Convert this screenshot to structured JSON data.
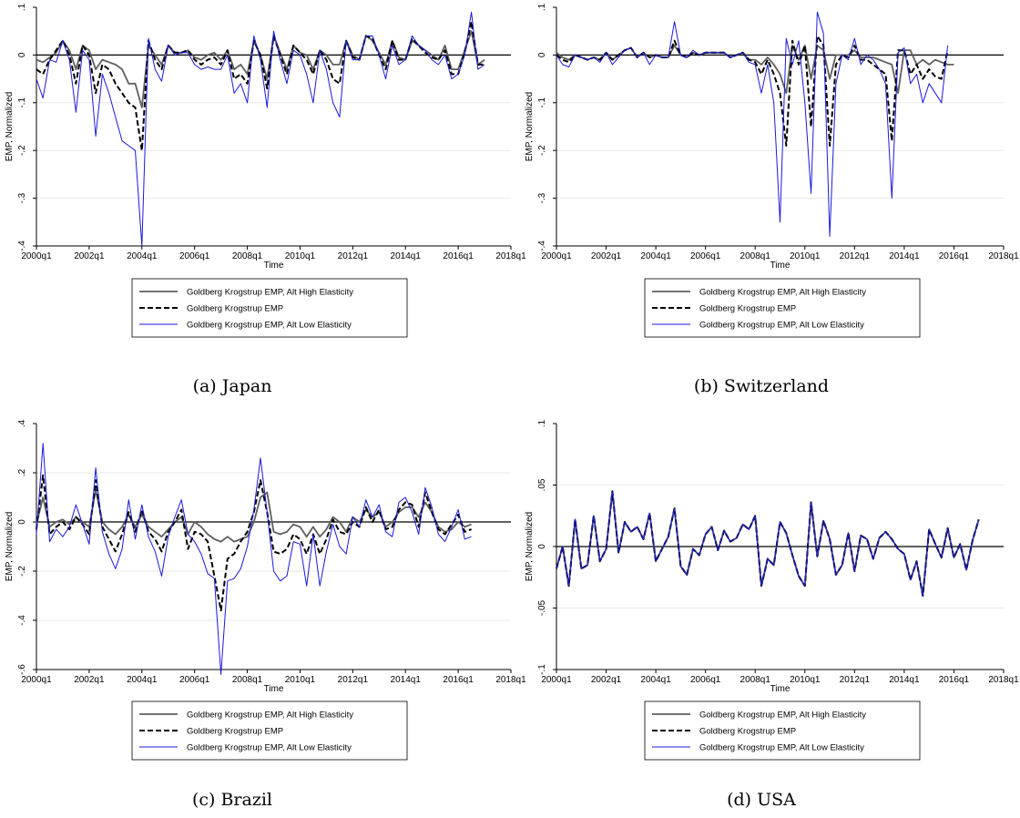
{
  "figure": {
    "legend_labels": [
      "Goldberg Krogstrup EMP, Alt High Elasticity",
      "Goldberg Krogstrup EMP",
      "Goldberg Krogstrup EMP, Alt Low Elasticity"
    ],
    "colors": {
      "high": "#5f5f5f",
      "base": "#000000",
      "low": "#1a1adc"
    }
  },
  "chart_data": [
    {
      "type": "line",
      "caption": "(a) Japan",
      "xlabel": "Time",
      "ylabel": "EMP, Normalized",
      "xlim": [
        2000.0,
        2018.0
      ],
      "x_ticks": [
        "2000q1",
        "2002q1",
        "2004q1",
        "2006q1",
        "2008q1",
        "2010q1",
        "2012q1",
        "2014q1",
        "2016q1",
        "2018q1"
      ],
      "ylim": [
        -0.4,
        0.1
      ],
      "y_ticks": [
        ".1",
        "0",
        "-.1",
        "-.2",
        "-.3",
        "-.4"
      ],
      "y_tick_values": [
        0.1,
        0,
        -0.1,
        -0.2,
        -0.3,
        -0.4
      ],
      "legend": "bottom",
      "x_start": "2000q1",
      "series": [
        {
          "name": "Goldberg Krogstrup EMP, Alt High Elasticity",
          "values": [
            -0.01,
            -0.015,
            -0.005,
            0.005,
            0.03,
            0.01,
            -0.03,
            0.02,
            0.01,
            -0.03,
            -0.01,
            -0.015,
            -0.02,
            -0.03,
            -0.06,
            -0.06,
            -0.11,
            0.02,
            0.0,
            -0.02,
            0.02,
            0.005,
            0.005,
            0.01,
            -0.005,
            -0.01,
            0.0,
            0.005,
            -0.01,
            0.01,
            -0.03,
            -0.02,
            -0.04,
            0.03,
            0.0,
            -0.05,
            0.04,
            0.005,
            -0.03,
            0.02,
            0.005,
            0.0,
            -0.03,
            0.01,
            0.0,
            -0.02,
            -0.02,
            0.03,
            0.0,
            -0.01,
            0.04,
            0.03,
            0.005,
            -0.02,
            0.03,
            -0.005,
            -0.01,
            0.03,
            0.02,
            0.01,
            0.0,
            -0.01,
            0.02,
            -0.03,
            -0.03,
            0.01,
            0.05,
            -0.02,
            -0.01
          ]
        },
        {
          "name": "Goldberg Krogstrup EMP",
          "values": [
            -0.03,
            -0.04,
            -0.01,
            0.01,
            0.03,
            0.0,
            -0.06,
            0.02,
            0.0,
            -0.08,
            -0.02,
            -0.03,
            -0.06,
            -0.08,
            -0.1,
            -0.11,
            -0.2,
            0.03,
            -0.01,
            -0.03,
            0.02,
            0.005,
            0.005,
            0.01,
            -0.01,
            -0.02,
            -0.01,
            -0.005,
            -0.02,
            0.01,
            -0.05,
            -0.04,
            -0.06,
            0.03,
            0.0,
            -0.07,
            0.04,
            0.0,
            -0.04,
            0.02,
            0.005,
            -0.01,
            -0.04,
            0.01,
            -0.01,
            -0.05,
            -0.06,
            0.03,
            -0.005,
            -0.01,
            0.04,
            0.035,
            0.0,
            -0.03,
            0.03,
            -0.01,
            -0.01,
            0.035,
            0.02,
            0.005,
            -0.005,
            -0.01,
            0.01,
            -0.04,
            -0.04,
            0.005,
            0.07,
            -0.02,
            -0.02
          ]
        },
        {
          "name": "Goldberg Krogstrup EMP, Alt Low Elasticity",
          "values": [
            -0.05,
            -0.09,
            -0.01,
            -0.015,
            0.03,
            -0.01,
            -0.12,
            0.01,
            -0.01,
            -0.17,
            -0.04,
            -0.08,
            -0.13,
            -0.18,
            -0.19,
            -0.2,
            -0.4,
            0.035,
            -0.03,
            -0.055,
            0.02,
            0.0,
            0.005,
            0.005,
            -0.02,
            -0.03,
            -0.025,
            -0.03,
            -0.03,
            0.0,
            -0.08,
            -0.06,
            -0.1,
            0.04,
            -0.01,
            -0.11,
            0.05,
            -0.01,
            -0.06,
            0.01,
            0.0,
            -0.04,
            -0.1,
            0.01,
            -0.03,
            -0.1,
            -0.13,
            0.03,
            -0.01,
            -0.01,
            0.04,
            0.04,
            0.0,
            -0.05,
            0.02,
            -0.02,
            -0.01,
            0.04,
            0.02,
            0.01,
            -0.01,
            -0.02,
            0.0,
            -0.05,
            -0.04,
            0.0,
            0.09,
            -0.03,
            -0.02
          ]
        }
      ]
    },
    {
      "type": "line",
      "caption": "(b) Switzerland",
      "xlabel": "Time",
      "ylabel": "EMP, Normalized",
      "xlim": [
        2000.0,
        2018.0
      ],
      "x_ticks": [
        "2000q1",
        "2002q1",
        "2004q1",
        "2006q1",
        "2008q1",
        "2010q1",
        "2012q1",
        "2014q1",
        "2016q1",
        "2018q1"
      ],
      "ylim": [
        -0.4,
        0.1
      ],
      "y_ticks": [
        ".1",
        "0",
        "-.1",
        "-.2",
        "-.3",
        "-.4"
      ],
      "y_tick_values": [
        0.1,
        0,
        -0.1,
        -0.2,
        -0.3,
        -0.4
      ],
      "legend": "bottom",
      "x_start": "2000q1",
      "series": [
        {
          "name": "Goldberg Krogstrup EMP, Alt High Elasticity",
          "values": [
            0.005,
            -0.005,
            -0.01,
            0.0,
            -0.005,
            -0.01,
            -0.005,
            -0.01,
            0.005,
            -0.01,
            0.0,
            0.01,
            0.015,
            -0.005,
            0.005,
            -0.005,
            0.0,
            -0.005,
            -0.005,
            0.02,
            0.0,
            -0.005,
            0.005,
            0.0,
            0.005,
            0.005,
            0.005,
            0.005,
            -0.005,
            0.0,
            0.005,
            -0.01,
            -0.01,
            -0.02,
            -0.005,
            -0.02,
            -0.04,
            -0.08,
            0.02,
            -0.01,
            0.02,
            -0.05,
            0.02,
            0.01,
            -0.05,
            0.0,
            0.0,
            0.0,
            0.01,
            -0.005,
            -0.005,
            -0.005,
            -0.01,
            -0.015,
            -0.02,
            -0.08,
            0.01,
            0.01,
            -0.02,
            -0.01,
            -0.02,
            -0.01,
            -0.015,
            -0.02,
            -0.02
          ]
        },
        {
          "name": "Goldberg Krogstrup EMP",
          "values": [
            0.0,
            -0.01,
            -0.015,
            0.0,
            -0.005,
            -0.01,
            -0.005,
            -0.01,
            0.005,
            -0.01,
            0.0,
            0.01,
            0.015,
            -0.005,
            0.005,
            -0.005,
            0.0,
            -0.005,
            -0.005,
            0.03,
            0.0,
            -0.005,
            0.005,
            0.0,
            0.005,
            0.005,
            0.005,
            0.005,
            -0.005,
            0.0,
            0.005,
            -0.01,
            -0.015,
            -0.04,
            -0.01,
            -0.04,
            -0.08,
            -0.19,
            0.03,
            -0.02,
            0.02,
            -0.15,
            0.04,
            0.02,
            -0.19,
            -0.02,
            0.0,
            -0.005,
            0.02,
            -0.01,
            -0.01,
            -0.02,
            -0.03,
            -0.04,
            -0.18,
            0.01,
            0.01,
            -0.04,
            -0.02,
            -0.05,
            -0.03,
            -0.045,
            -0.05,
            0.01
          ]
        },
        {
          "name": "Goldberg Krogstrup EMP, Alt Low Elasticity",
          "values": [
            0.0,
            -0.02,
            -0.025,
            0.0,
            -0.005,
            -0.01,
            -0.005,
            -0.015,
            0.005,
            -0.02,
            -0.005,
            0.01,
            0.015,
            -0.005,
            0.005,
            -0.02,
            0.0,
            -0.005,
            -0.005,
            0.07,
            0.0,
            -0.005,
            0.01,
            0.0,
            0.005,
            0.005,
            0.005,
            0.005,
            -0.005,
            0.0,
            0.005,
            -0.015,
            -0.02,
            -0.08,
            -0.02,
            -0.1,
            -0.35,
            0.035,
            -0.02,
            0.03,
            -0.1,
            -0.29,
            0.09,
            0.045,
            -0.38,
            -0.06,
            0.0,
            -0.01,
            0.035,
            -0.02,
            0.0,
            -0.01,
            -0.03,
            -0.06,
            -0.3,
            0.005,
            0.015,
            -0.06,
            -0.04,
            -0.1,
            -0.06,
            -0.08,
            -0.1,
            0.02
          ]
        }
      ]
    },
    {
      "type": "line",
      "caption": "(c) Brazil",
      "xlabel": "Time",
      "ylabel": "EMP, Normalized",
      "xlim": [
        2000.0,
        2018.0
      ],
      "x_ticks": [
        "2000q1",
        "2002q1",
        "2004q1",
        "2006q1",
        "2008q1",
        "2010q1",
        "2012q1",
        "2014q1",
        "2016q1",
        "2018q1"
      ],
      "ylim": [
        -0.6,
        0.4
      ],
      "y_ticks": [
        ".4",
        ".2",
        "0",
        "-.2",
        "-.4",
        "-.6"
      ],
      "y_tick_values": [
        0.4,
        0.2,
        0,
        -0.2,
        -0.4,
        -0.6
      ],
      "legend": "bottom",
      "x_start": "2000q1",
      "series": [
        {
          "name": "Goldberg Krogstrup EMP, Alt High Elasticity",
          "values": [
            -0.01,
            0.1,
            -0.02,
            0.0,
            0.01,
            -0.01,
            0.02,
            0.0,
            -0.02,
            0.13,
            0.0,
            -0.03,
            -0.05,
            -0.02,
            0.03,
            -0.02,
            0.03,
            -0.02,
            -0.04,
            -0.06,
            -0.03,
            0.0,
            0.02,
            -0.05,
            0.0,
            -0.02,
            -0.05,
            -0.07,
            -0.08,
            -0.06,
            -0.08,
            -0.07,
            -0.06,
            0.0,
            0.1,
            0.12,
            -0.04,
            -0.05,
            -0.04,
            -0.01,
            -0.02,
            -0.06,
            -0.02,
            -0.06,
            -0.03,
            0.02,
            0.0,
            -0.04,
            0.02,
            0.0,
            0.05,
            0.02,
            0.04,
            -0.02,
            0.0,
            0.04,
            0.06,
            0.06,
            0.02,
            0.08,
            0.04,
            -0.02,
            -0.04,
            -0.03,
            0.0,
            -0.02,
            -0.01
          ]
        },
        {
          "name": "Goldberg Krogstrup EMP",
          "values": [
            -0.03,
            0.19,
            -0.05,
            -0.02,
            0.0,
            -0.03,
            0.02,
            -0.01,
            -0.05,
            0.17,
            -0.02,
            -0.07,
            -0.12,
            -0.05,
            0.04,
            -0.04,
            0.05,
            -0.04,
            -0.07,
            -0.12,
            -0.04,
            0.0,
            0.05,
            -0.11,
            -0.04,
            -0.05,
            -0.08,
            -0.22,
            -0.36,
            -0.15,
            -0.13,
            -0.08,
            -0.04,
            0.04,
            0.17,
            0.04,
            -0.12,
            -0.13,
            -0.11,
            -0.05,
            -0.07,
            -0.13,
            -0.05,
            -0.13,
            -0.07,
            0.01,
            -0.04,
            -0.05,
            0.0,
            -0.02,
            0.06,
            0.0,
            0.05,
            -0.03,
            -0.02,
            0.05,
            0.08,
            0.07,
            -0.02,
            0.12,
            0.04,
            -0.03,
            -0.05,
            -0.01,
            0.03,
            -0.04,
            -0.03
          ]
        },
        {
          "name": "Goldberg Krogstrup EMP, Alt Low Elasticity",
          "values": [
            -0.05,
            0.32,
            -0.08,
            -0.03,
            -0.06,
            -0.02,
            0.07,
            -0.01,
            -0.09,
            0.22,
            -0.04,
            -0.13,
            -0.19,
            -0.11,
            0.09,
            -0.07,
            0.07,
            -0.06,
            -0.12,
            -0.22,
            -0.06,
            0.02,
            0.09,
            -0.05,
            -0.08,
            -0.13,
            -0.21,
            -0.23,
            -0.62,
            -0.24,
            -0.23,
            -0.19,
            -0.1,
            0.05,
            0.26,
            0.04,
            -0.2,
            -0.24,
            -0.22,
            -0.08,
            -0.09,
            -0.26,
            -0.05,
            -0.26,
            -0.12,
            -0.01,
            -0.1,
            -0.13,
            0.02,
            -0.02,
            0.09,
            0.02,
            0.07,
            -0.04,
            -0.06,
            0.08,
            0.1,
            0.04,
            -0.05,
            0.14,
            0.06,
            -0.05,
            -0.08,
            -0.02,
            0.05,
            -0.07,
            -0.06
          ]
        }
      ]
    },
    {
      "type": "line",
      "caption": "(d) USA",
      "xlabel": "Time",
      "ylabel": "EMP, Normalized",
      "xlim": [
        2000.0,
        2018.0
      ],
      "x_ticks": [
        "2000q1",
        "2002q1",
        "2004q1",
        "2006q1",
        "2008q1",
        "2010q1",
        "2012q1",
        "2014q1",
        "2016q1",
        "2018q1"
      ],
      "ylim": [
        -0.1,
        0.1
      ],
      "y_ticks": [
        ".1",
        ".05",
        "0",
        "-.05",
        "-.1"
      ],
      "y_tick_values": [
        0.1,
        0.05,
        0,
        -0.05,
        -0.1
      ],
      "legend": "bottom",
      "x_start": "2000q1",
      "series": [
        {
          "name": "Goldberg Krogstrup EMP, Alt High Elasticity",
          "values": [
            -0.018,
            0.0,
            -0.032,
            0.022,
            -0.018,
            -0.015,
            0.025,
            -0.012,
            -0.002,
            0.045,
            -0.005,
            0.02,
            0.012,
            0.016,
            0.006,
            0.027,
            -0.012,
            -0.002,
            0.008,
            0.031,
            -0.016,
            -0.023,
            -0.002,
            -0.007,
            0.01,
            0.016,
            -0.003,
            0.013,
            0.004,
            0.007,
            0.018,
            0.014,
            0.025,
            -0.032,
            -0.01,
            -0.015,
            0.02,
            0.011,
            -0.007,
            -0.024,
            -0.032,
            0.036,
            -0.008,
            0.021,
            0.006,
            -0.023,
            -0.015,
            0.011,
            -0.02,
            0.009,
            0.006,
            -0.01,
            0.007,
            0.012,
            0.006,
            -0.002,
            -0.006,
            -0.027,
            -0.012,
            -0.04,
            0.014,
            0.002,
            -0.009,
            0.015,
            -0.009,
            0.002,
            -0.019,
            0.005,
            0.022
          ]
        },
        {
          "name": "Goldberg Krogstrup EMP",
          "values": [
            -0.018,
            0.0,
            -0.032,
            0.022,
            -0.018,
            -0.015,
            0.025,
            -0.012,
            -0.002,
            0.045,
            -0.005,
            0.02,
            0.012,
            0.016,
            0.006,
            0.027,
            -0.012,
            -0.002,
            0.008,
            0.031,
            -0.016,
            -0.023,
            -0.002,
            -0.007,
            0.01,
            0.016,
            -0.003,
            0.013,
            0.004,
            0.007,
            0.018,
            0.014,
            0.025,
            -0.032,
            -0.01,
            -0.015,
            0.02,
            0.011,
            -0.007,
            -0.024,
            -0.032,
            0.036,
            -0.008,
            0.021,
            0.006,
            -0.023,
            -0.015,
            0.011,
            -0.02,
            0.009,
            0.006,
            -0.01,
            0.007,
            0.012,
            0.006,
            -0.002,
            -0.006,
            -0.027,
            -0.012,
            -0.04,
            0.014,
            0.002,
            -0.009,
            0.015,
            -0.009,
            0.002,
            -0.019,
            0.005,
            0.022
          ]
        },
        {
          "name": "Goldberg Krogstrup EMP, Alt Low Elasticity",
          "values": [
            -0.018,
            0.0,
            -0.032,
            0.022,
            -0.018,
            -0.015,
            0.025,
            -0.012,
            -0.002,
            0.045,
            -0.005,
            0.02,
            0.012,
            0.016,
            0.006,
            0.027,
            -0.012,
            -0.002,
            0.008,
            0.031,
            -0.016,
            -0.023,
            -0.002,
            -0.007,
            0.01,
            0.016,
            -0.003,
            0.013,
            0.004,
            0.007,
            0.018,
            0.014,
            0.025,
            -0.032,
            -0.01,
            -0.015,
            0.02,
            0.011,
            -0.007,
            -0.024,
            -0.032,
            0.036,
            -0.008,
            0.021,
            0.006,
            -0.023,
            -0.015,
            0.011,
            -0.02,
            0.009,
            0.006,
            -0.01,
            0.007,
            0.012,
            0.006,
            -0.002,
            -0.006,
            -0.027,
            -0.012,
            -0.04,
            0.014,
            0.002,
            -0.009,
            0.015,
            -0.009,
            0.002,
            -0.019,
            0.005,
            0.022
          ]
        }
      ]
    }
  ]
}
